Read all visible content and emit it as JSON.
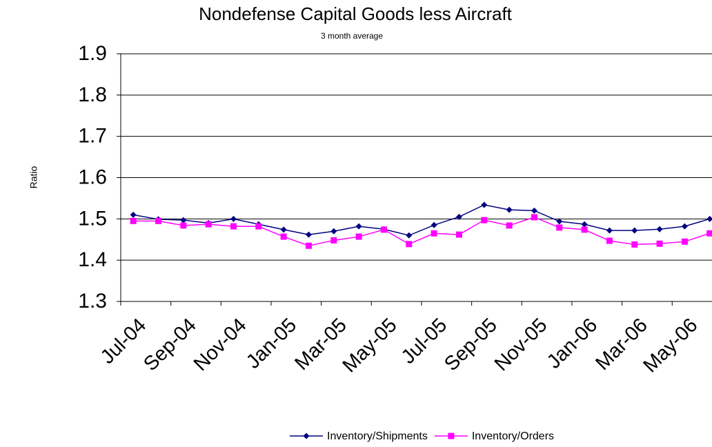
{
  "chart_data": {
    "type": "line",
    "title": "Nondefense Capital Goods less Aircraft",
    "subtitle": "3 month average",
    "y_label": "Ratio",
    "categories": [
      "Jul-04",
      null,
      "Sep-04",
      null,
      "Nov-04",
      null,
      "Jan-05",
      null,
      "Mar-05",
      null,
      "May-05",
      null,
      "Jul-05",
      null,
      "Sep-05",
      null,
      "Nov-05",
      null,
      "Jan-06",
      null,
      "Mar-06",
      null,
      "May-06",
      null
    ],
    "series": [
      {
        "name": "Inventory/Shipments",
        "color": "#000080",
        "marker": "diamond",
        "values": [
          1.51,
          1.499,
          1.497,
          1.49,
          1.5,
          1.487,
          1.474,
          1.462,
          1.47,
          1.482,
          1.475,
          1.46,
          1.485,
          1.505,
          1.534,
          1.522,
          1.52,
          1.494,
          1.487,
          1.472,
          1.472,
          1.475,
          1.482,
          1.5
        ]
      },
      {
        "name": "Inventory/Orders",
        "color": "#ff00ff",
        "marker": "square",
        "values": [
          1.495,
          1.495,
          1.484,
          1.487,
          1.482,
          1.482,
          1.457,
          1.435,
          1.448,
          1.457,
          1.474,
          1.439,
          1.465,
          1.462,
          1.497,
          1.484,
          1.504,
          1.479,
          1.474,
          1.447,
          1.438,
          1.44,
          1.445,
          1.465
        ]
      }
    ],
    "ylim": [
      1.3,
      1.9
    ],
    "yticks": [
      1.3,
      1.4,
      1.5,
      1.6,
      1.7,
      1.8,
      1.9
    ],
    "grid": true,
    "legend": "bottom"
  }
}
